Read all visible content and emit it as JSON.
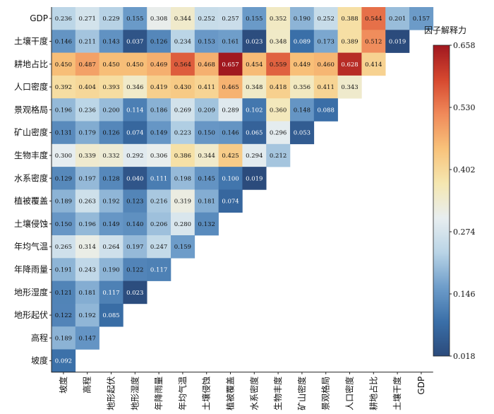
{
  "chart_data": {
    "type": "heatmap",
    "colorbar_title": "因子解释力",
    "colorbar_ticks": [
      0.658,
      0.53,
      0.402,
      0.274,
      0.146,
      0.018
    ],
    "colorbar_range": [
      0.018,
      0.658
    ],
    "colormap": [
      "#2b4a7b",
      "#3a6fa8",
      "#6e9dca",
      "#b9d4e6",
      "#e8eef0",
      "#f5e7b0",
      "#f8c27a",
      "#f08a5a",
      "#d6482f",
      "#a0171f"
    ],
    "rows": [
      "GDP",
      "土壤干度",
      "耕地占比",
      "人口密度",
      "景观格局",
      "矿山密度",
      "生物丰度",
      "水系密度",
      "植被覆盖",
      "土壤侵蚀",
      "年均气温",
      "年降雨量",
      "地形湿度",
      "地形起伏",
      "高程",
      "坡度"
    ],
    "columns": [
      "坡度",
      "高程",
      "地形起伏",
      "地形湿度",
      "年降雨量",
      "年均气温",
      "土壤侵蚀",
      "植被覆盖",
      "水系密度",
      "生物丰度",
      "矿山密度",
      "景观格局",
      "人口密度",
      "耕地占比",
      "土壤干度",
      "GDP"
    ],
    "values": [
      [
        0.236,
        0.271,
        0.229,
        0.155,
        0.308,
        0.344,
        0.252,
        0.257,
        0.155,
        0.352,
        0.19,
        0.252,
        0.388,
        0.544,
        0.201,
        0.157
      ],
      [
        0.146,
        0.211,
        0.143,
        0.037,
        0.126,
        0.234,
        0.153,
        0.161,
        0.023,
        0.348,
        0.089,
        0.173,
        0.389,
        0.512,
        0.019
      ],
      [
        0.45,
        0.487,
        0.45,
        0.45,
        0.469,
        0.564,
        0.468,
        0.657,
        0.454,
        0.559,
        0.449,
        0.46,
        0.628,
        0.414
      ],
      [
        0.392,
        0.404,
        0.393,
        0.346,
        0.419,
        0.43,
        0.411,
        0.465,
        0.348,
        0.418,
        0.356,
        0.411,
        0.343
      ],
      [
        0.196,
        0.236,
        0.2,
        0.114,
        0.186,
        0.269,
        0.209,
        0.289,
        0.102,
        0.36,
        0.148,
        0.088
      ],
      [
        0.131,
        0.179,
        0.126,
        0.074,
        0.149,
        0.223,
        0.15,
        0.146,
        0.065,
        0.296,
        0.053
      ],
      [
        0.3,
        0.339,
        0.332,
        0.292,
        0.306,
        0.386,
        0.344,
        0.425,
        0.294,
        0.212
      ],
      [
        0.129,
        0.197,
        0.128,
        0.04,
        0.111,
        0.198,
        0.145,
        0.1,
        0.019
      ],
      [
        0.189,
        0.263,
        0.192,
        0.123,
        0.216,
        0.319,
        0.181,
        0.074
      ],
      [
        0.15,
        0.196,
        0.149,
        0.14,
        0.206,
        0.28,
        0.132
      ],
      [
        0.265,
        0.314,
        0.264,
        0.197,
        0.247,
        0.159
      ],
      [
        0.191,
        0.243,
        0.19,
        0.122,
        0.117
      ],
      [
        0.121,
        0.181,
        0.117,
        0.023
      ],
      [
        0.122,
        0.192,
        0.085
      ],
      [
        0.189,
        0.147
      ],
      [
        0.092
      ]
    ]
  }
}
